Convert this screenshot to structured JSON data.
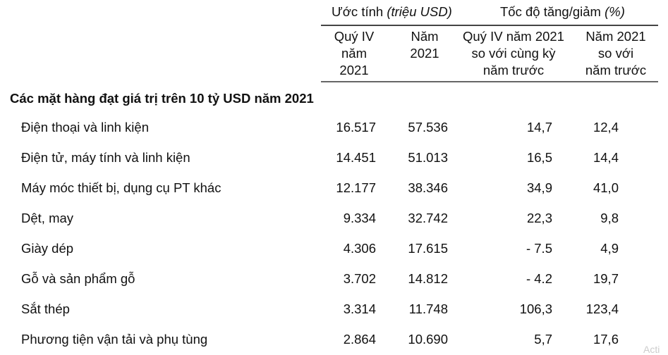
{
  "header": {
    "group_estimate": "Ước tính",
    "group_estimate_unit": "(triệu USD)",
    "group_growth": "Tốc độ tăng/giảm",
    "group_growth_unit": "(%)",
    "columns": [
      "Quý IV\nnăm\n2021",
      "Năm\n2021",
      "Quý IV năm 2021\nso với cùng kỳ\nnăm trước",
      "Năm 2021\nso với\nnăm trước"
    ]
  },
  "section_title": "Các mặt hàng đạt giá trị trên 10 tỷ USD năm 2021",
  "rows": [
    {
      "name": "Điện thoại và linh kiện",
      "q4": "16.517",
      "year": "57.536",
      "q4_growth": "14,7",
      "year_growth": "12,4"
    },
    {
      "name": "Điện tử, máy tính và linh kiện",
      "q4": "14.451",
      "year": "51.013",
      "q4_growth": "16,5",
      "year_growth": "14,4"
    },
    {
      "name": "Máy móc thiết bị, dụng cụ PT khác",
      "q4": "12.177",
      "year": "38.346",
      "q4_growth": "34,9",
      "year_growth": "41,0"
    },
    {
      "name": "Dệt, may",
      "q4": "9.334",
      "year": "32.742",
      "q4_growth": "22,3",
      "year_growth": "9,8"
    },
    {
      "name": "Giày dép",
      "q4": "4.306",
      "year": "17.615",
      "q4_growth": "- 7.5",
      "year_growth": "4,9"
    },
    {
      "name": "Gỗ và sản phẩm gỗ",
      "q4": "3.702",
      "year": "14.812",
      "q4_growth": "- 4.2",
      "year_growth": "19,7"
    },
    {
      "name": "Sắt thép",
      "q4": "3.314",
      "year": "11.748",
      "q4_growth": "106,3",
      "year_growth": "123,4"
    },
    {
      "name": "Phương tiện vận tải và phụ tùng",
      "q4": "2.864",
      "year": "10.690",
      "q4_growth": "5,7",
      "year_growth": "17,6"
    }
  ],
  "watermark": "Acti"
}
